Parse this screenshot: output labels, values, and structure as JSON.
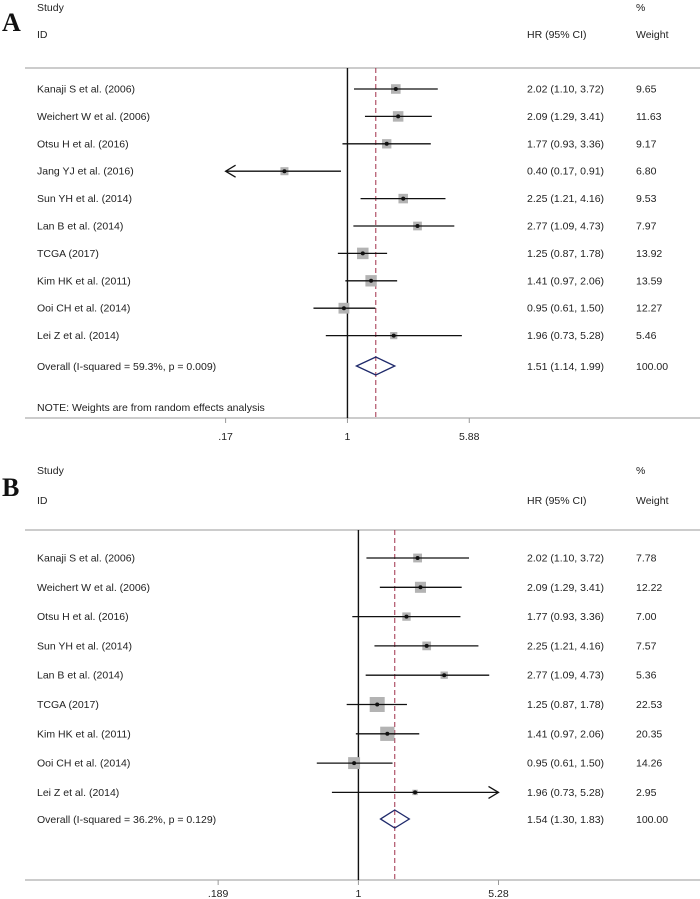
{
  "chart_data": [
    {
      "type": "forest",
      "panel_label": "A",
      "header": {
        "study": "Study",
        "id": "ID",
        "hr": "HR (95% CI)",
        "pct": "%",
        "weight": "Weight"
      },
      "x_axis": {
        "scale": "log",
        "range": [
          0.0915,
          11.6
        ],
        "ticks": [
          0.17,
          1,
          5.88
        ],
        "tick_labels": [
          ".17",
          "1",
          "5.88"
        ]
      },
      "reference_line": 1,
      "overall_line": 1.51,
      "studies": [
        {
          "label": "Kanaji S et al. (2006)",
          "hr": 2.02,
          "lo": 1.1,
          "hi": 3.72,
          "ci_text": "2.02 (1.10, 3.72)",
          "weight": 9.65,
          "weight_text": "9.65"
        },
        {
          "label": "Weichert W et al. (2006)",
          "hr": 2.09,
          "lo": 1.29,
          "hi": 3.41,
          "ci_text": "2.09 (1.29, 3.41)",
          "weight": 11.63,
          "weight_text": "11.63"
        },
        {
          "label": "Otsu H et al. (2016)",
          "hr": 1.77,
          "lo": 0.93,
          "hi": 3.36,
          "ci_text": "1.77 (0.93, 3.36)",
          "weight": 9.17,
          "weight_text": "9.17"
        },
        {
          "label": "Jang YJ et al. (2016)",
          "hr": 0.4,
          "lo": 0.17,
          "hi": 0.91,
          "ci_text": "0.40 (0.17, 0.91)",
          "weight": 6.8,
          "weight_text": "6.80",
          "arrow_left": true
        },
        {
          "label": "Sun YH et al. (2014)",
          "hr": 2.25,
          "lo": 1.21,
          "hi": 4.16,
          "ci_text": "2.25 (1.21, 4.16)",
          "weight": 9.53,
          "weight_text": "9.53"
        },
        {
          "label": "Lan B et al. (2014)",
          "hr": 2.77,
          "lo": 1.09,
          "hi": 4.73,
          "ci_text": "2.77 (1.09, 4.73)",
          "weight": 7.97,
          "weight_text": "7.97"
        },
        {
          "label": "TCGA (2017)",
          "hr": 1.25,
          "lo": 0.87,
          "hi": 1.78,
          "ci_text": "1.25 (0.87, 1.78)",
          "weight": 13.92,
          "weight_text": "13.92"
        },
        {
          "label": "Kim HK et al. (2011)",
          "hr": 1.41,
          "lo": 0.97,
          "hi": 2.06,
          "ci_text": "1.41 (0.97, 2.06)",
          "weight": 13.59,
          "weight_text": "13.59"
        },
        {
          "label": "Ooi CH et al. (2014)",
          "hr": 0.95,
          "lo": 0.61,
          "hi": 1.5,
          "ci_text": "0.95 (0.61, 1.50)",
          "weight": 12.27,
          "weight_text": "12.27"
        },
        {
          "label": "Lei Z et al. (2014)",
          "hr": 1.96,
          "lo": 0.73,
          "hi": 5.28,
          "ci_text": "1.96 (0.73, 5.28)",
          "weight": 5.46,
          "weight_text": "5.46"
        }
      ],
      "overall": {
        "label": "Overall  (I-squared = 59.3%, p = 0.009)",
        "hr": 1.51,
        "lo": 1.14,
        "hi": 1.99,
        "ci_text": "1.51 (1.14, 1.99)",
        "weight_text": "100.00"
      },
      "note": "NOTE: Weights are from random effects analysis"
    },
    {
      "type": "forest",
      "panel_label": "B",
      "header": {
        "study": "Study",
        "id": "ID",
        "hr": "HR (95% CI)",
        "pct": "%",
        "weight": "Weight"
      },
      "x_axis": {
        "scale": "log",
        "range": [
          0.1245,
          6.5
        ],
        "ticks": [
          0.189,
          1,
          5.28
        ],
        "tick_labels": [
          ".189",
          "1",
          "5.28"
        ]
      },
      "reference_line": 1,
      "overall_line": 1.54,
      "studies": [
        {
          "label": "Kanaji S et al. (2006)",
          "hr": 2.02,
          "lo": 1.1,
          "hi": 3.72,
          "ci_text": "2.02 (1.10, 3.72)",
          "weight": 7.78,
          "weight_text": "7.78"
        },
        {
          "label": "Weichert W et al. (2006)",
          "hr": 2.09,
          "lo": 1.29,
          "hi": 3.41,
          "ci_text": "2.09 (1.29, 3.41)",
          "weight": 12.22,
          "weight_text": "12.22"
        },
        {
          "label": "Otsu H et al. (2016)",
          "hr": 1.77,
          "lo": 0.93,
          "hi": 3.36,
          "ci_text": "1.77 (0.93, 3.36)",
          "weight": 7.0,
          "weight_text": "7.00"
        },
        {
          "label": "Sun YH et al. (2014)",
          "hr": 2.25,
          "lo": 1.21,
          "hi": 4.16,
          "ci_text": "2.25 (1.21, 4.16)",
          "weight": 7.57,
          "weight_text": "7.57"
        },
        {
          "label": "Lan B et al. (2014)",
          "hr": 2.77,
          "lo": 1.09,
          "hi": 4.73,
          "ci_text": "2.77 (1.09, 4.73)",
          "weight": 5.36,
          "weight_text": "5.36"
        },
        {
          "label": "TCGA (2017)",
          "hr": 1.25,
          "lo": 0.87,
          "hi": 1.78,
          "ci_text": "1.25 (0.87, 1.78)",
          "weight": 22.53,
          "weight_text": "22.53"
        },
        {
          "label": "Kim HK et al. (2011)",
          "hr": 1.41,
          "lo": 0.97,
          "hi": 2.06,
          "ci_text": "1.41 (0.97, 2.06)",
          "weight": 20.35,
          "weight_text": "20.35"
        },
        {
          "label": "Ooi CH et al. (2014)",
          "hr": 0.95,
          "lo": 0.61,
          "hi": 1.5,
          "ci_text": "0.95 (0.61, 1.50)",
          "weight": 14.26,
          "weight_text": "14.26"
        },
        {
          "label": "Lei Z et al. (2014)",
          "hr": 1.96,
          "lo": 0.73,
          "hi": 5.28,
          "ci_text": "1.96 (0.73, 5.28)",
          "weight": 2.95,
          "weight_text": "2.95",
          "arrow_right": true
        }
      ],
      "overall": {
        "label": "Overall  (I-squared = 36.2%, p = 0.129)",
        "hr": 1.54,
        "lo": 1.3,
        "hi": 1.83,
        "ci_text": "1.54 (1.30, 1.83)",
        "weight_text": "100.00"
      },
      "note": ""
    }
  ],
  "colors": {
    "diamond": "#1f2a6b",
    "overall_line": "#a0304a",
    "box": "#b3b3b3",
    "line": "#111111"
  }
}
